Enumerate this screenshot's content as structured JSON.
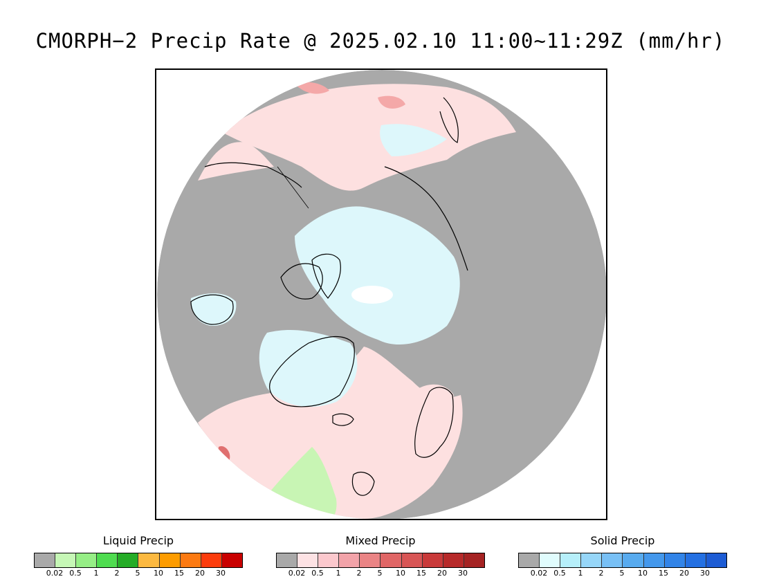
{
  "title": "CMORPH−2 Precip Rate @ 2025.02.10 11:00~11:29Z (mm/hr)",
  "map": {
    "projection": "north-polar-stereographic",
    "colors": {
      "background_none": "#a9a9a9",
      "liquid_light": "#c8f5b4",
      "liquid_medium": "#7edd73",
      "mixed_light": "#fde0e0",
      "mixed_medium": "#f4a8a8",
      "mixed_heavy": "#e07070",
      "solid_light": "#ddf7fb",
      "solid_medium": "#b2eaf6",
      "clear_pole": "#ffffff",
      "coastline": "#000000"
    }
  },
  "legends": [
    {
      "title": "Liquid Precip",
      "colors": [
        "#a9a9a9",
        "#c6f7b6",
        "#96ee86",
        "#4fdc50",
        "#25ac27",
        "#fcb940",
        "#fd9c00",
        "#fc7a12",
        "#fc3c0c",
        "#c90000"
      ],
      "ticks": [
        "0.02",
        "0.5",
        "1",
        "2",
        "5",
        "10",
        "15",
        "20",
        "30"
      ]
    },
    {
      "title": "Mixed Precip",
      "colors": [
        "#a9a9a9",
        "#fde2e4",
        "#fbc8cd",
        "#f2a3a9",
        "#ea8485",
        "#e06666",
        "#d85656",
        "#c93a3a",
        "#b72a2a",
        "#a52323"
      ],
      "ticks": [
        "0.02",
        "0.5",
        "1",
        "2",
        "5",
        "10",
        "15",
        "20",
        "30"
      ]
    },
    {
      "title": "Solid Precip",
      "colors": [
        "#a9a9a9",
        "#e0fcfd",
        "#b6effa",
        "#96d6f8",
        "#78c0f5",
        "#58abef",
        "#4498ec",
        "#3284e8",
        "#2470e2",
        "#1d5cd4"
      ],
      "ticks": [
        "0.02",
        "0.5",
        "1",
        "2",
        "5",
        "10",
        "15",
        "20",
        "30"
      ]
    }
  ]
}
